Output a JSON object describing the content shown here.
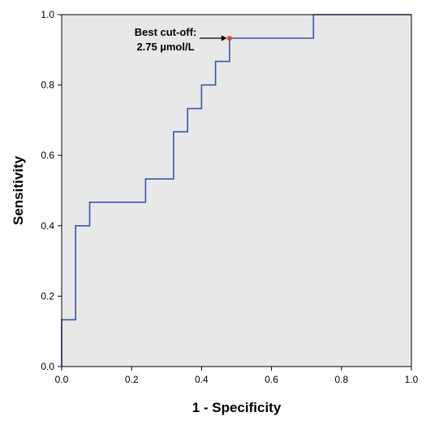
{
  "chart_data": {
    "type": "line",
    "title": "",
    "xlabel": "1 - Specificity",
    "ylabel": "Sensitivity",
    "xlim": [
      0,
      1
    ],
    "ylim": [
      0,
      1
    ],
    "x_ticks": [
      "0.0",
      "0.2",
      "0.4",
      "0.6",
      "0.8",
      "1.0"
    ],
    "y_ticks": [
      "0.0",
      "0.2",
      "0.4",
      "0.6",
      "0.8",
      "1.0"
    ],
    "grid": false,
    "background_color": "#e8e8e8",
    "series": [
      {
        "color": "#3a55a8",
        "x": [
          0,
          0,
          0.04,
          0.04,
          0.08,
          0.08,
          0.24,
          0.24,
          0.32,
          0.32,
          0.36,
          0.36,
          0.4,
          0.4,
          0.44,
          0.44,
          0.48,
          0.48,
          0.72,
          0.72,
          1.0
        ],
        "y": [
          0,
          0.133,
          0.133,
          0.4,
          0.4,
          0.467,
          0.467,
          0.533,
          0.533,
          0.667,
          0.667,
          0.733,
          0.733,
          0.8,
          0.8,
          0.867,
          0.867,
          0.933,
          0.933,
          1.0,
          1.0
        ]
      }
    ],
    "annotation": {
      "lines": [
        "Best cut-off:",
        "2.75 µmol/L"
      ],
      "point": {
        "x": 0.48,
        "y": 0.933
      },
      "marker_color": "#e8401c"
    }
  }
}
